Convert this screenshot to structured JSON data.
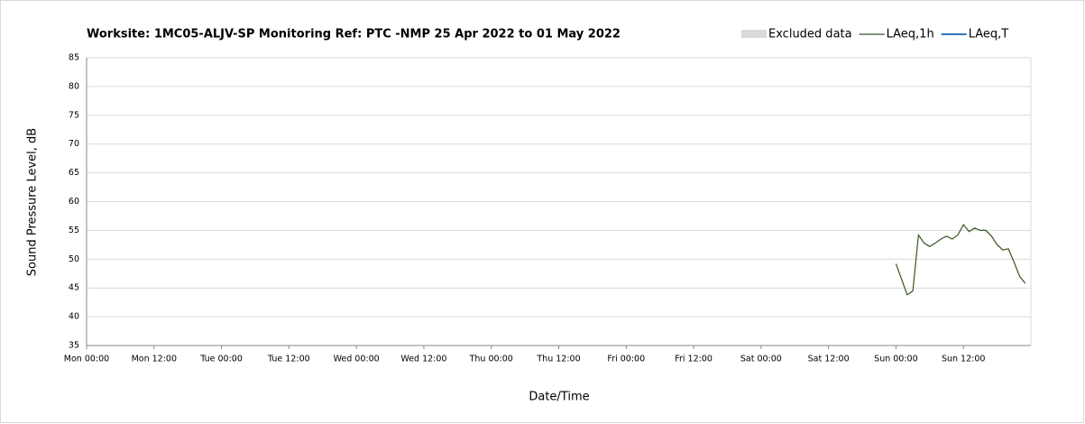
{
  "chart_data": {
    "type": "line",
    "title": "Worksite: 1MC05-ALJV-SP Monitoring Ref: PTC   -NMP 25 Apr 2022 to 01 May 2022",
    "xlabel": "Date/Time",
    "ylabel": "Sound Pressure Level, dB",
    "xlim": [
      0,
      168
    ],
    "xticks": [
      {
        "value": 0,
        "label": "Mon 00:00"
      },
      {
        "value": 12,
        "label": "Mon 12:00"
      },
      {
        "value": 24,
        "label": "Tue 00:00"
      },
      {
        "value": 36,
        "label": "Tue 12:00"
      },
      {
        "value": 48,
        "label": "Wed 00:00"
      },
      {
        "value": 60,
        "label": "Wed 12:00"
      },
      {
        "value": 72,
        "label": "Thu 00:00"
      },
      {
        "value": 84,
        "label": "Thu 12:00"
      },
      {
        "value": 96,
        "label": "Fri 00:00"
      },
      {
        "value": 108,
        "label": "Fri 12:00"
      },
      {
        "value": 120,
        "label": "Sat 00:00"
      },
      {
        "value": 132,
        "label": "Sat 12:00"
      },
      {
        "value": 144,
        "label": "Sun 00:00"
      },
      {
        "value": 156,
        "label": "Sun 12:00"
      }
    ],
    "ylim": [
      35,
      85
    ],
    "yticks": [
      35,
      40,
      45,
      50,
      55,
      60,
      65,
      70,
      75,
      80,
      85
    ],
    "grid": true,
    "legend": "top-right",
    "series": [
      {
        "name": "Excluded data",
        "color": "#d9d9d9",
        "kind": "area",
        "x": [],
        "values": []
      },
      {
        "name": "LAeq,1h",
        "color": "#375623",
        "kind": "line",
        "x": [
          144,
          145,
          146,
          147,
          148,
          149,
          150,
          151,
          152,
          153,
          154,
          155,
          156,
          157,
          158,
          159,
          160,
          161,
          162,
          163,
          164,
          165,
          166,
          167
        ],
        "values": [
          49.2,
          46.5,
          43.8,
          44.5,
          54.2,
          52.8,
          52.2,
          52.8,
          53.5,
          54.0,
          53.5,
          54.2,
          56.0,
          54.8,
          55.4,
          55.0,
          55.0,
          54.0,
          52.5,
          51.6,
          51.8,
          49.5,
          47.0,
          45.8
        ]
      },
      {
        "name": "LAeq,T",
        "color": "#2e75b6",
        "kind": "line",
        "x": [],
        "values": []
      }
    ]
  }
}
